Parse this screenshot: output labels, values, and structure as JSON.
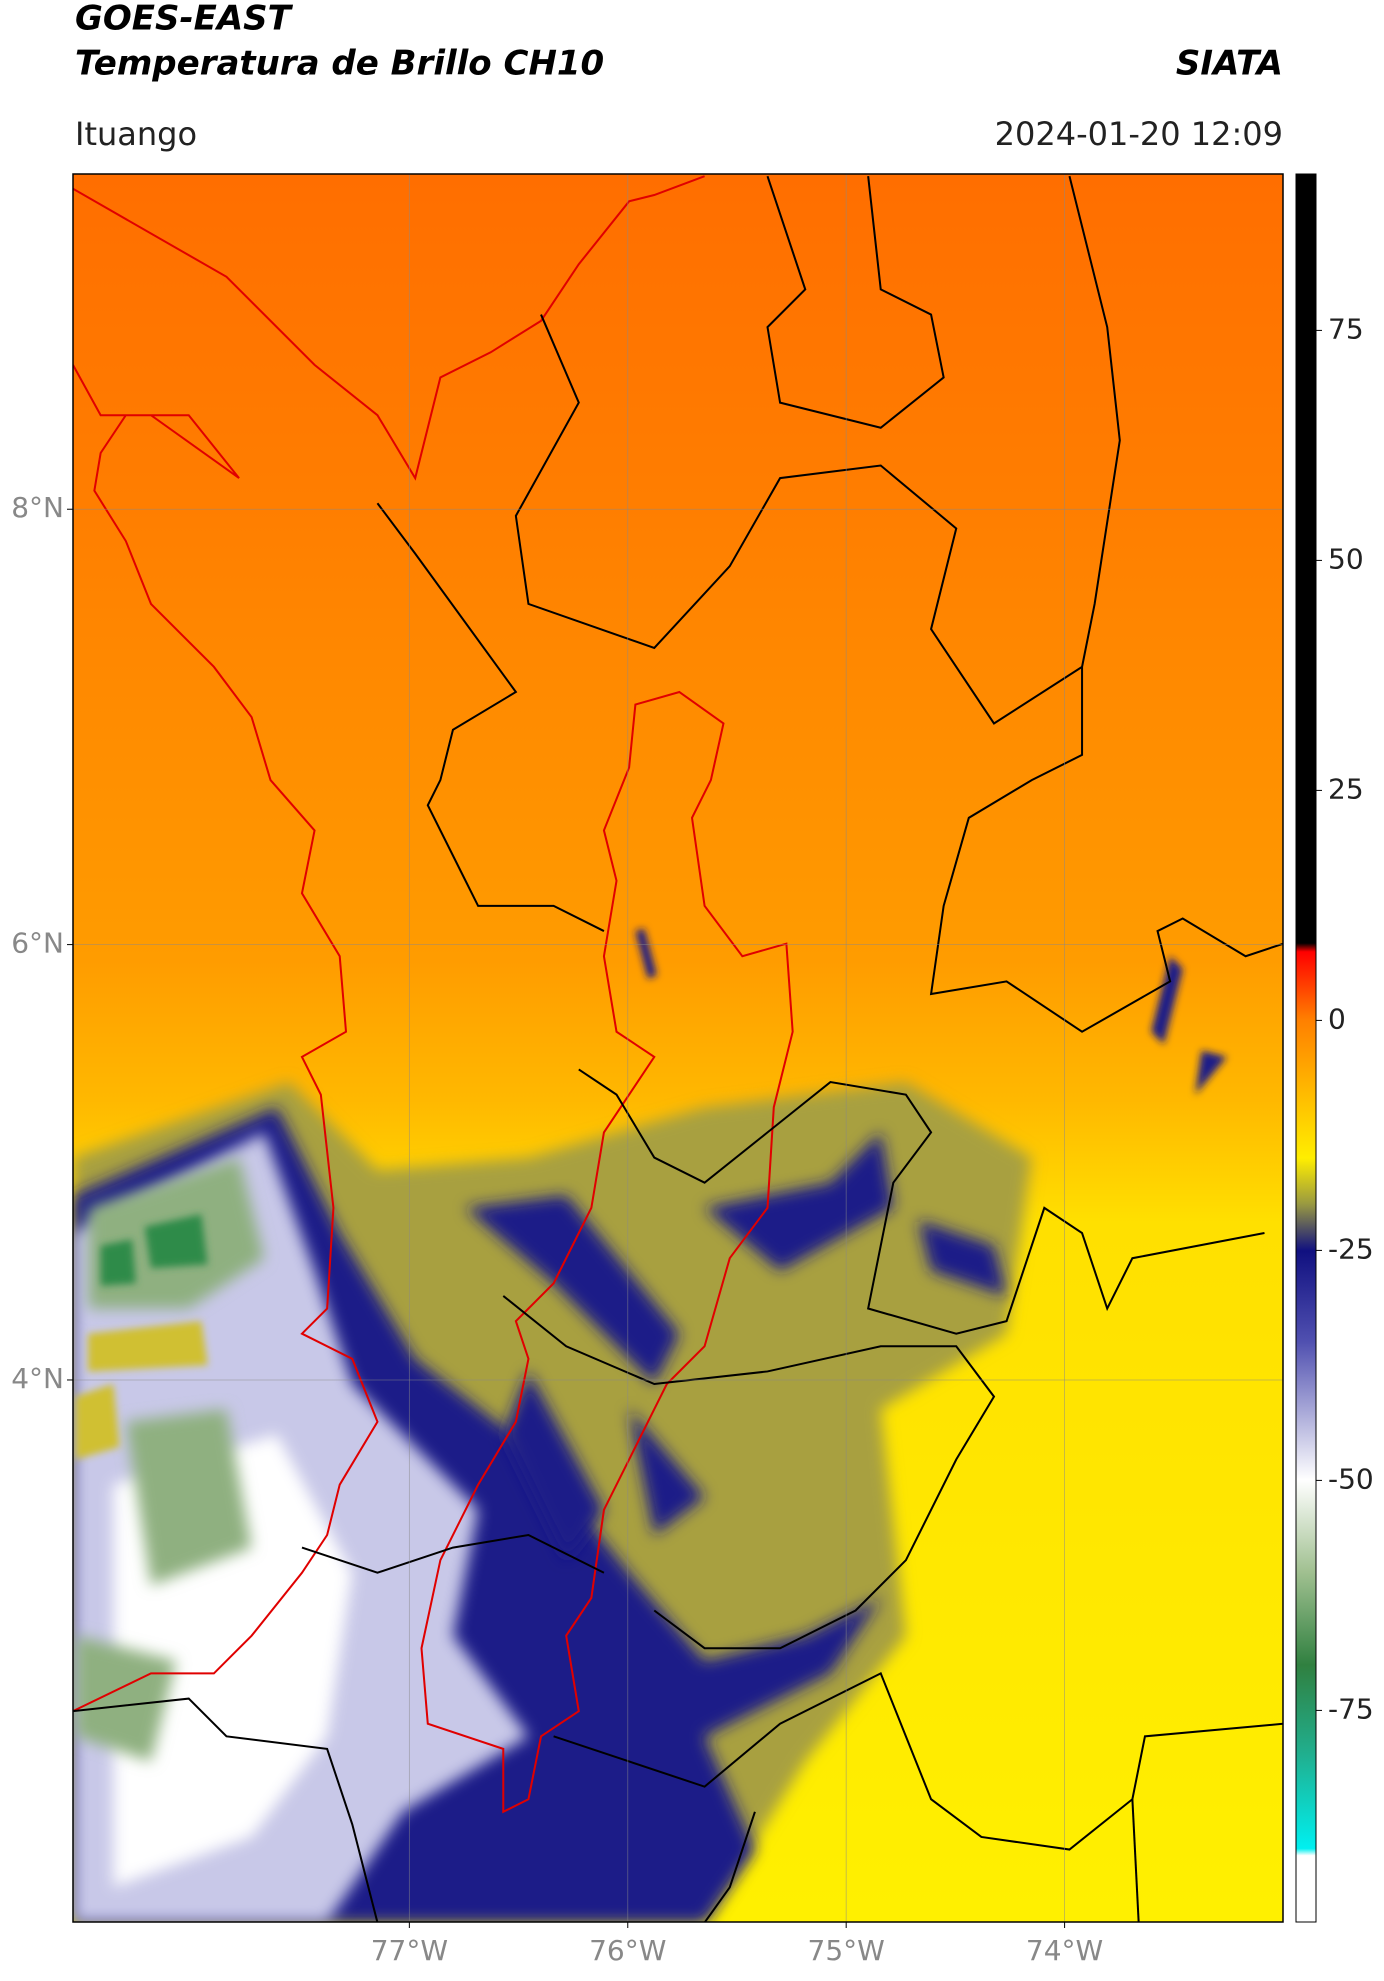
{
  "header": {
    "title": "GOES-EAST",
    "subtitle": "Temperatura de Brillo CH10",
    "agency": "SIATA",
    "location": "Ituango",
    "datetime": "2024-01-20 12:09"
  },
  "map": {
    "xlim": [
      -78.54,
      -73.0
    ],
    "ylim": [
      1.51,
      9.54
    ],
    "xticks": [
      {
        "value": -77,
        "label": "77°W"
      },
      {
        "value": -76,
        "label": "76°W"
      },
      {
        "value": -75,
        "label": "75°W"
      },
      {
        "value": -74,
        "label": "74°W"
      }
    ],
    "yticks": [
      {
        "value": 4,
        "label": "4°N"
      },
      {
        "value": 6,
        "label": "6°N"
      },
      {
        "value": 8,
        "label": "8°N"
      }
    ],
    "grid": true
  },
  "colorbar": {
    "clim": [
      -98,
      92
    ],
    "ticks": [
      -75,
      -50,
      -25,
      0,
      25,
      50,
      75
    ]
  }
}
